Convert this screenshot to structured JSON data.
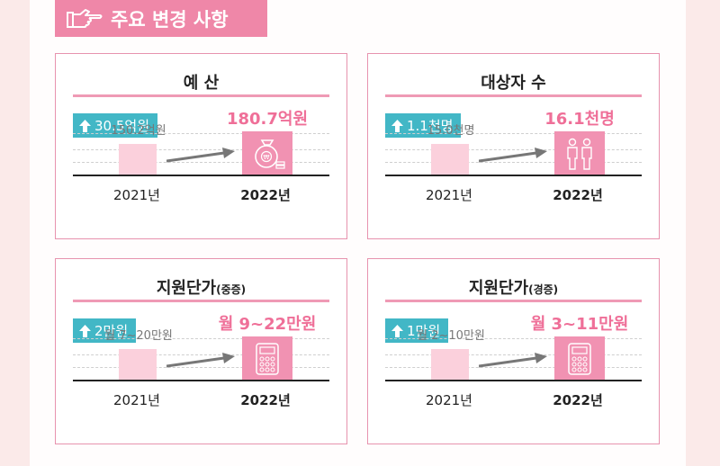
{
  "header": {
    "title": "주요 변경 사항",
    "icon": "pointing-hand-icon"
  },
  "colors": {
    "accent": "#ef87a8",
    "badge": "#42b7c6",
    "bar_prev": "#fbd0dc",
    "bar_next": "#f192b2",
    "value_next": "#ef6f98"
  },
  "cards": [
    {
      "title": "예 산",
      "title_small": "",
      "badge": "30.5억원",
      "prev_value": "150.2억원",
      "next_value": "180.7억원",
      "prev_year": "2021년",
      "next_year": "2022년",
      "icon": "money-bag-icon"
    },
    {
      "title": "대상자 수",
      "title_small": "",
      "badge": "1.1천명",
      "prev_value": "15.0천명",
      "next_value": "16.1천명",
      "prev_year": "2021년",
      "next_year": "2022년",
      "icon": "people-icon"
    },
    {
      "title": "지원단가",
      "title_small": "(중증)",
      "badge": "2만원",
      "prev_value": "월 7~20만원",
      "next_value": "월 9~22만원",
      "prev_year": "2021년",
      "next_year": "2022년",
      "icon": "calculator-icon"
    },
    {
      "title": "지원단가",
      "title_small": "(경증)",
      "badge": "1만원",
      "prev_value": "월 2~10만원",
      "next_value": "월 3~11만원",
      "prev_year": "2021년",
      "next_year": "2022년",
      "icon": "calculator-icon"
    }
  ]
}
